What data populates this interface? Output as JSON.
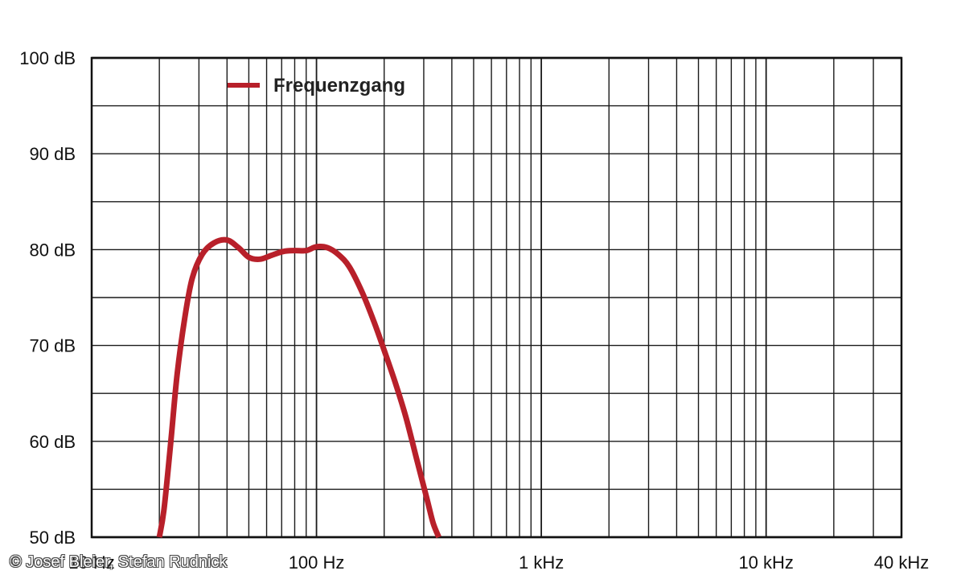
{
  "chart_data": {
    "type": "line",
    "x_scale": "log",
    "xlim": [
      10,
      40000
    ],
    "ylim": [
      50,
      100
    ],
    "grid": true,
    "legend_placement": "top-left",
    "x_ticks": [
      {
        "value": 10,
        "label": "10 Hz"
      },
      {
        "value": 100,
        "label": "100 Hz"
      },
      {
        "value": 1000,
        "label": "1 kHz"
      },
      {
        "value": 10000,
        "label": "10 kHz"
      },
      {
        "value": 40000,
        "label": "40 kHz"
      }
    ],
    "y_ticks": [
      {
        "value": 50,
        "label": "50 dB"
      },
      {
        "value": 60,
        "label": "60 dB"
      },
      {
        "value": 70,
        "label": "70 dB"
      },
      {
        "value": 80,
        "label": "80 dB"
      },
      {
        "value": 90,
        "label": "90 dB"
      },
      {
        "value": 100,
        "label": "100 dB"
      }
    ],
    "series": [
      {
        "name": "Frequenzgang",
        "color": "#b8202a",
        "points": [
          {
            "x": 20,
            "y": 50
          },
          {
            "x": 21,
            "y": 53
          },
          {
            "x": 22.5,
            "y": 60
          },
          {
            "x": 24,
            "y": 67
          },
          {
            "x": 26,
            "y": 73
          },
          {
            "x": 28,
            "y": 77
          },
          {
            "x": 31,
            "y": 79.5
          },
          {
            "x": 35,
            "y": 80.7
          },
          {
            "x": 40,
            "y": 81
          },
          {
            "x": 45,
            "y": 80.2
          },
          {
            "x": 50,
            "y": 79.2
          },
          {
            "x": 56,
            "y": 79
          },
          {
            "x": 63,
            "y": 79.4
          },
          {
            "x": 71,
            "y": 79.8
          },
          {
            "x": 80,
            "y": 79.9
          },
          {
            "x": 90,
            "y": 79.9
          },
          {
            "x": 100,
            "y": 80.3
          },
          {
            "x": 112,
            "y": 80.2
          },
          {
            "x": 125,
            "y": 79.5
          },
          {
            "x": 140,
            "y": 78.2
          },
          {
            "x": 160,
            "y": 75.5
          },
          {
            "x": 180,
            "y": 72.5
          },
          {
            "x": 200,
            "y": 69.5
          },
          {
            "x": 225,
            "y": 66
          },
          {
            "x": 250,
            "y": 62.5
          },
          {
            "x": 280,
            "y": 58
          },
          {
            "x": 310,
            "y": 54
          },
          {
            "x": 330,
            "y": 51.5
          },
          {
            "x": 350,
            "y": 50
          }
        ]
      }
    ]
  },
  "legend": {
    "label": "Frequenzgang",
    "color": "#b8202a"
  },
  "credit": "© Josef Bleier, Stefan Rudnick"
}
